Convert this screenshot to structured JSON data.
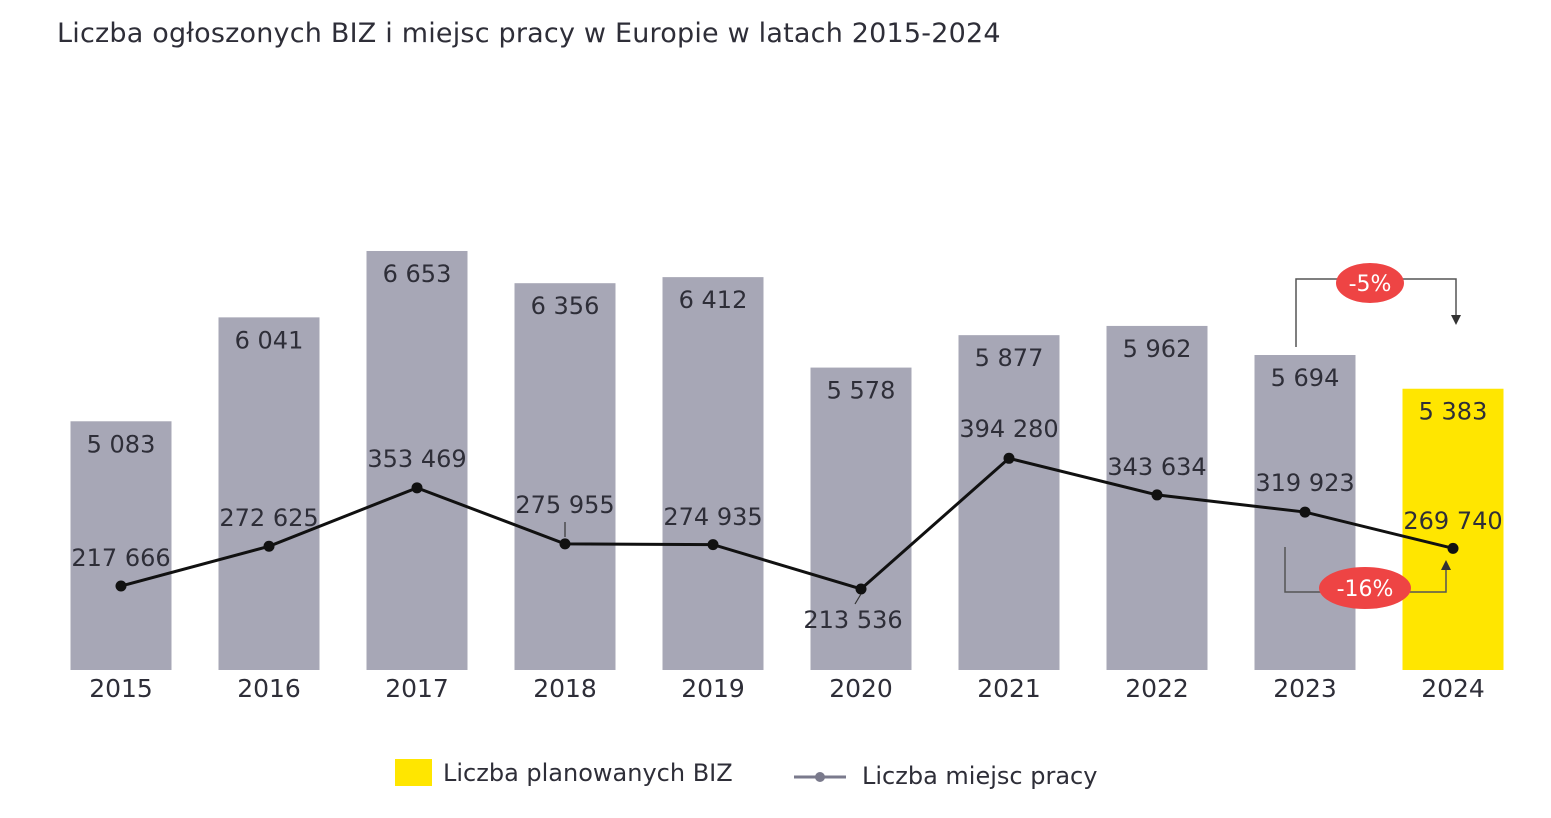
{
  "title": "Liczba ogłoszonych BIZ i miejsc pracy w Europie w latach 2015-2024",
  "chart_data": {
    "type": "bar",
    "categories": [
      "2015",
      "2016",
      "2017",
      "2018",
      "2019",
      "2020",
      "2021",
      "2022",
      "2023",
      "2024"
    ],
    "series": [
      {
        "name": "Liczba planowanych BIZ",
        "type": "bar",
        "values": [
          5083,
          6041,
          6653,
          6356,
          6412,
          5578,
          5877,
          5962,
          5694,
          5383
        ],
        "labels": [
          "5 083",
          "6 041",
          "6 653",
          "6 356",
          "6 412",
          "5 578",
          "5 877",
          "5 962",
          "5 694",
          "5 383"
        ]
      },
      {
        "name": "Liczba miejsc pracy",
        "type": "line",
        "values": [
          217666,
          272625,
          353469,
          275955,
          274935,
          213536,
          394280,
          343634,
          319923,
          269740
        ],
        "labels": [
          "217 666",
          "272 625",
          "353 469",
          "275 955",
          "274 935",
          "213 536",
          "394 280",
          "343 634",
          "319 923",
          "269 740"
        ]
      }
    ],
    "annotations": [
      {
        "text": "-5%",
        "series": "Liczba planowanych BIZ",
        "from": "2023",
        "to": "2024"
      },
      {
        "text": "-16%",
        "series": "Liczba miejsc pracy",
        "from": "2023",
        "to": "2024"
      }
    ],
    "legend": "bottom",
    "grid": false,
    "colors": {
      "bar": "#a7a7b6",
      "bar_highlight": "#ffe600",
      "line": "#111111",
      "badge": "#ee4444",
      "text": "#2e2e38"
    }
  }
}
